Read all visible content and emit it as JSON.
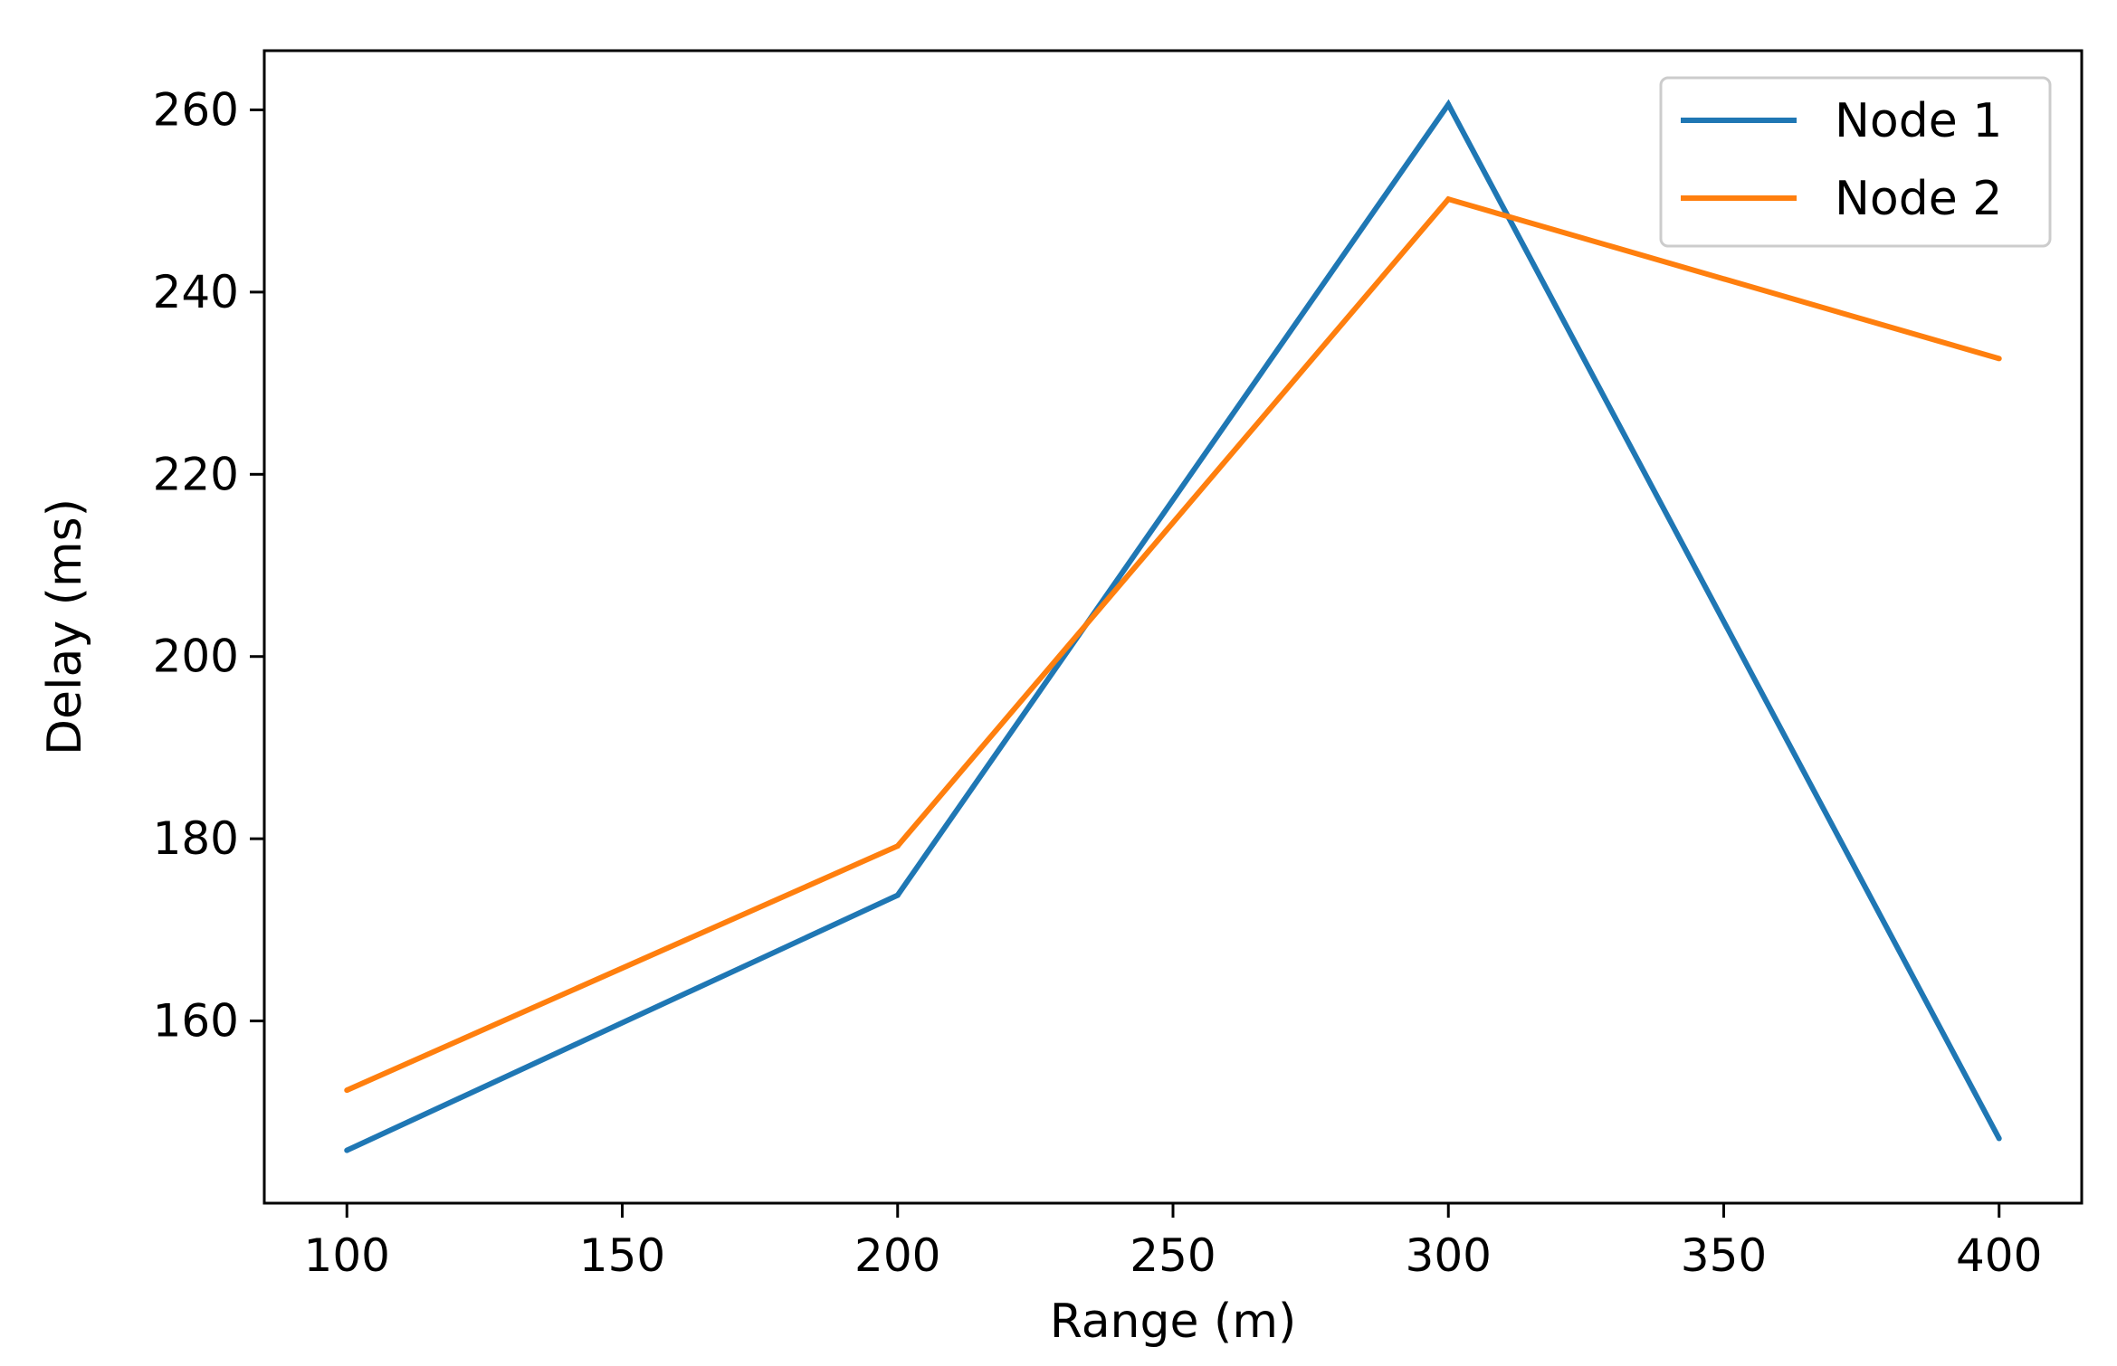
{
  "chart_data": {
    "type": "line",
    "title": "",
    "xlabel": "Range (m)",
    "ylabel": "Delay (ms)",
    "x": [
      100,
      200,
      300,
      400
    ],
    "xticks": [
      100,
      150,
      200,
      250,
      300,
      350,
      400
    ],
    "xtick_labels": [
      "100",
      "150",
      "200",
      "250",
      "300",
      "350",
      "400"
    ],
    "yticks": [
      160,
      180,
      200,
      220,
      240,
      260
    ],
    "ytick_labels": [
      "160",
      "180",
      "200",
      "220",
      "240",
      "260"
    ],
    "xlim": [
      85,
      415
    ],
    "ylim": [
      140,
      266.5
    ],
    "grid": false,
    "legend_position": "top-right",
    "series": [
      {
        "name": "Node 1",
        "color": "#1f77b4",
        "values": [
          145.8,
          173.8,
          260.6,
          147.1
        ]
      },
      {
        "name": "Node 2",
        "color": "#ff7f0e",
        "values": [
          152.4,
          179.2,
          250.2,
          232.7
        ]
      }
    ]
  }
}
